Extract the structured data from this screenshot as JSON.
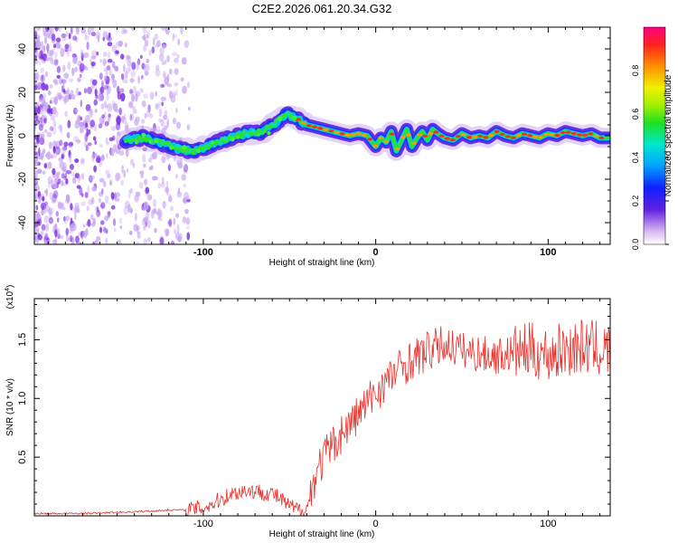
{
  "chart_data": [
    {
      "type": "heatmap",
      "title": "C2E2.2026.061.20.34.G32",
      "xlabel": "Height of straight line (km)",
      "ylabel": "Frequency (Hz)",
      "xlim": [
        -198,
        136
      ],
      "ylim": [
        -50,
        50
      ],
      "xticks": [
        -100,
        0,
        100
      ],
      "yticks": [
        -40,
        -20,
        0,
        20,
        40
      ],
      "colorbar": {
        "label": "Normalized spectral amplitude",
        "range": [
          0,
          1
        ],
        "ticks": [
          "0.0",
          "0.2",
          "0.4",
          "0.6",
          "0.8"
        ]
      },
      "ridge": {
        "name": "dominant frequency track",
        "x": [
          -145,
          -135,
          -125,
          -115,
          -105,
          -95,
          -85,
          -75,
          -65,
          -58,
          -52,
          -46,
          -40,
          -35,
          -30,
          -25,
          -20,
          -15,
          -10,
          -5,
          0,
          3,
          6,
          9,
          12,
          15,
          18,
          21,
          24,
          27,
          30,
          33,
          36,
          40,
          45,
          50,
          55,
          60,
          65,
          70,
          75,
          80,
          85,
          90,
          95,
          100,
          105,
          110,
          115,
          120,
          125,
          130,
          136
        ],
        "y": [
          -2,
          -1,
          -3,
          -6,
          -7,
          -4,
          -1,
          1,
          2,
          6,
          10,
          8,
          5,
          4,
          3,
          2,
          1,
          0,
          1,
          0,
          -5,
          -1,
          -3,
          2,
          -7,
          -2,
          3,
          -5,
          -1,
          2,
          -2,
          3,
          1,
          -1,
          -2,
          1,
          -1,
          0,
          -1,
          2,
          0,
          -1,
          1,
          0,
          -1,
          1,
          0,
          2,
          1,
          0,
          1,
          -1,
          -1
        ]
      }
    },
    {
      "type": "line",
      "title": "",
      "xlabel": "Height of straight line (km)",
      "ylabel": "SNR (10 * v/v)",
      "multiplier_label": "(x10",
      "multiplier_exponent": "4",
      "multiplier_suffix": ")",
      "xlim": [
        -198,
        136
      ],
      "ylim": [
        0,
        1.85
      ],
      "xticks": [
        -100,
        0,
        100
      ],
      "yticks": [
        0.5,
        1.0,
        1.5
      ],
      "ytick_labels": [
        "0.5",
        "1.0",
        "1.5"
      ],
      "color": "#e8302a",
      "series": [
        {
          "name": "SNR",
          "x": [
            -198,
            -170,
            -150,
            -130,
            -120,
            -110,
            -100,
            -95,
            -90,
            -85,
            -80,
            -75,
            -70,
            -65,
            -60,
            -55,
            -50,
            -45,
            -40,
            -35,
            -30,
            -25,
            -20,
            -15,
            -10,
            -5,
            0,
            5,
            10,
            15,
            20,
            25,
            30,
            35,
            40,
            45,
            50,
            60,
            70,
            80,
            90,
            100,
            110,
            120,
            130,
            136
          ],
          "y": [
            0.02,
            0.02,
            0.03,
            0.04,
            0.05,
            0.05,
            0.07,
            0.1,
            0.14,
            0.18,
            0.2,
            0.22,
            0.21,
            0.2,
            0.19,
            0.14,
            0.08,
            0.05,
            0.06,
            0.35,
            0.5,
            0.6,
            0.7,
            0.78,
            0.87,
            0.96,
            1.05,
            1.13,
            1.2,
            1.27,
            1.32,
            1.36,
            1.4,
            1.43,
            1.46,
            1.44,
            1.41,
            1.38,
            1.36,
            1.39,
            1.41,
            1.37,
            1.42,
            1.44,
            1.42,
            1.4
          ]
        }
      ]
    }
  ]
}
